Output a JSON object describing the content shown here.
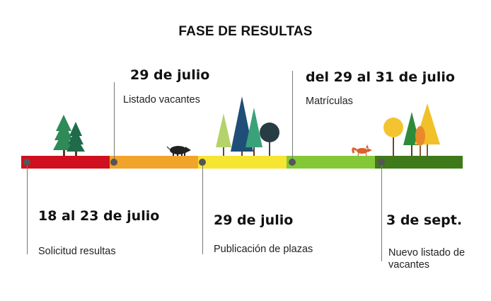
{
  "title": "FASE DE RESULTAS",
  "timeline": {
    "segment_colors": [
      "#d0101e",
      "#f2a42a",
      "#f6e531",
      "#84c838",
      "#3f7a1a"
    ],
    "events": [
      {
        "date": "18 al 23 de julio",
        "description": "Solicitud resultas"
      },
      {
        "date": "29 de julio",
        "description": "Listado vacantes"
      },
      {
        "date": "29 de julio",
        "description": "Publicación de plazas"
      },
      {
        "date": "del 29 al 31 de julio",
        "description": "Matrículas"
      },
      {
        "date": "3 de sept.",
        "description": "Nuevo listado de vacantes"
      }
    ]
  },
  "illustrations": [
    "pine-trees-icon",
    "boar-icon",
    "forest-trees-icon",
    "fox-icon",
    "autumn-trees-icon"
  ]
}
